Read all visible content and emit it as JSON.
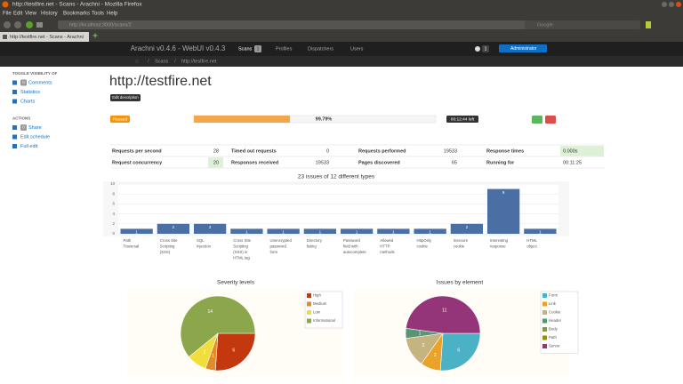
{
  "browser": {
    "window_title": "http://testfire.net - Scans - Arachni - Mozilla Firefox",
    "menu": [
      "File",
      "Edit",
      "View",
      "History",
      "Bookmarks",
      "Tools",
      "Help"
    ],
    "url": "http://localhost:3000/scans/2",
    "search_placeholder": "Google",
    "tab_title": "http://testfire.net - Scans - Arachni"
  },
  "navbar": {
    "brand": "Arachni v0.4.6 - WebUI v0.4.3",
    "items": [
      {
        "label": "Scans",
        "badge": "1"
      },
      {
        "label": "Profiles"
      },
      {
        "label": "Dispatchers"
      },
      {
        "label": "Users"
      }
    ],
    "notifications": "1",
    "user": "Administrator"
  },
  "breadcrumb": [
    "Scans",
    "http://testfire.net"
  ],
  "sidebar": [
    {
      "title": "TOGGLE VISIBILITY OF",
      "items": [
        {
          "label": "Comments",
          "badge": "0"
        },
        {
          "label": "Statistics"
        },
        {
          "label": "Charts"
        }
      ]
    },
    {
      "title": "ACTIONS",
      "items": [
        {
          "label": "Share",
          "badge": "0"
        },
        {
          "label": "Edit schedule"
        },
        {
          "label": "Full edit"
        }
      ]
    }
  ],
  "scan": {
    "title": "http://testfire.net",
    "edit_button": "Edit description",
    "status": "Paused",
    "progress": "99.79%",
    "eta": "00:12:44 left"
  },
  "stats": [
    [
      {
        "label": "Requests per second",
        "value": 28
      },
      {
        "label": "Timed out requests",
        "value": 0
      },
      {
        "label": "Requests performed",
        "value": 19533
      },
      {
        "label": "Response times",
        "value": "0.000s"
      }
    ],
    [
      {
        "label": "Request concurrency",
        "value": 20
      },
      {
        "label": "Responses received",
        "value": 19533
      },
      {
        "label": "Pages discovered",
        "value": 65
      },
      {
        "label": "Running for",
        "value": "00:11:25"
      }
    ]
  ],
  "chart_data": [
    {
      "type": "bar",
      "title": "23 issues of 12 different types",
      "categories": [
        "Path Traversal",
        "Cross Site Scripting (XSS)",
        "SQL Injection",
        "Cross Site Scripting (XSS) in HTML tag",
        "Unencrypted password form",
        "Directory listing",
        "Password field with autocomplete",
        "Allowed HTTP methods",
        "HttpOnly cookie",
        "Insecure cookie",
        "Interesting response",
        "HTML object"
      ],
      "values": [
        1,
        2,
        2,
        1,
        1,
        1,
        1,
        1,
        1,
        2,
        9,
        1
      ],
      "color": "#4a6fa5",
      "ylim": [
        0,
        10
      ],
      "yticks": [
        0,
        2,
        4,
        6,
        8,
        10
      ],
      "grid": true
    },
    {
      "type": "pie",
      "title": "Severity levels",
      "categories": [
        "High",
        "Medium",
        "Low",
        "Informational"
      ],
      "values": [
        6,
        1,
        2,
        14
      ],
      "colors": [
        "#c4380f",
        "#e38a2b",
        "#f0de3c",
        "#8ca64c"
      ]
    },
    {
      "type": "pie",
      "title": "Issues by element",
      "categories": [
        "Form",
        "Link",
        "Cookie",
        "Header",
        "Body",
        "Path",
        "Server"
      ],
      "values": [
        6,
        2,
        3,
        1,
        0,
        0,
        11
      ],
      "colors": [
        "#4bb2c5",
        "#eaa228",
        "#c5b47f",
        "#579575",
        "#839557",
        "#958c12",
        "#953579"
      ]
    }
  ]
}
